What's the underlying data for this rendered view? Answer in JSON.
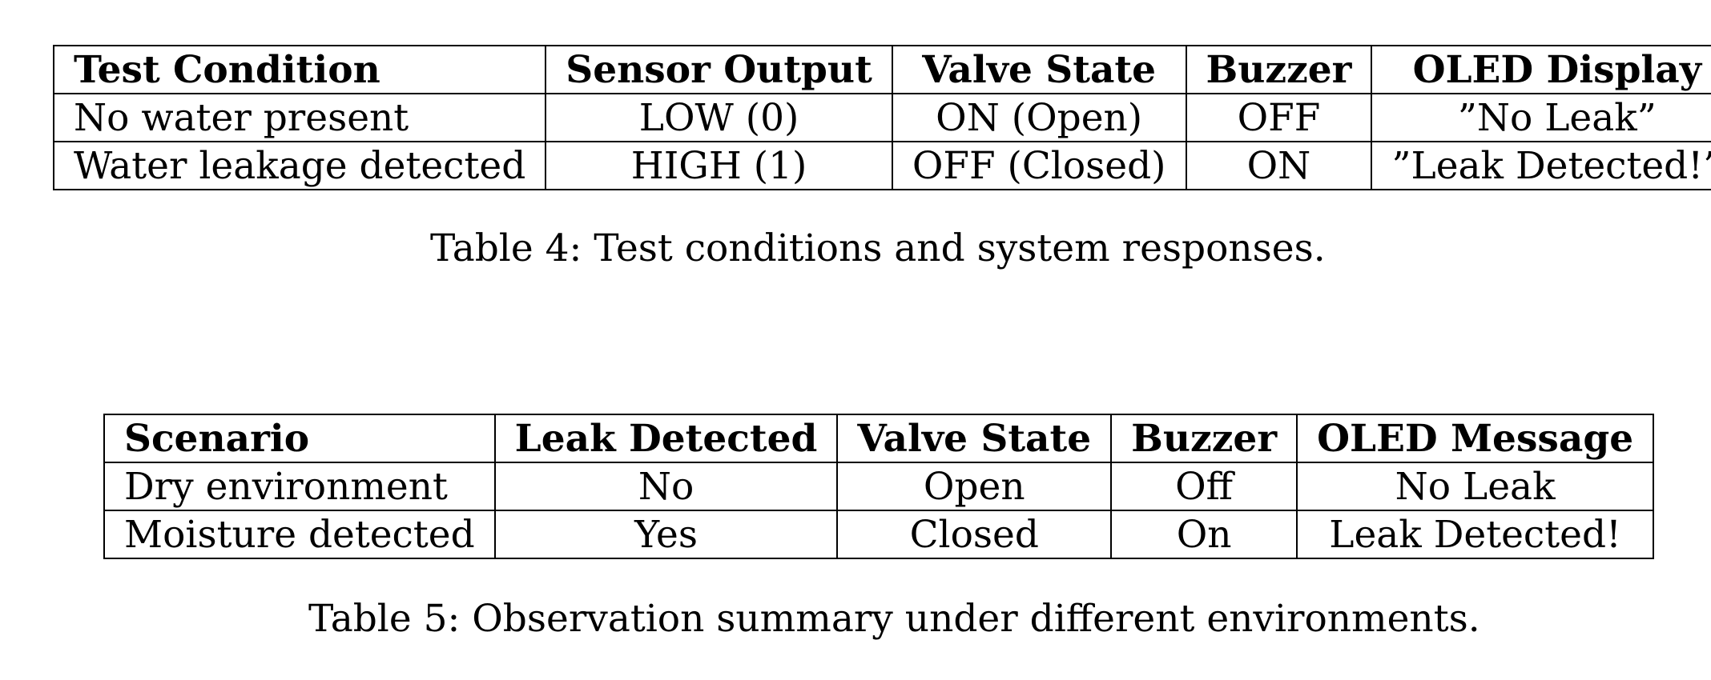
{
  "table4": {
    "headers": [
      "Test Condition",
      "Sensor Output",
      "Valve State",
      "Buzzer",
      "OLED Display"
    ],
    "rows": [
      [
        "No water present",
        "LOW (0)",
        "ON (Open)",
        "OFF",
        "”No Leak”"
      ],
      [
        "Water leakage detected",
        "HIGH (1)",
        "OFF (Closed)",
        "ON",
        "”Leak Detected!”"
      ]
    ],
    "caption": "Table 4: Test conditions and system responses."
  },
  "table5": {
    "headers": [
      "Scenario",
      "Leak Detected",
      "Valve State",
      "Buzzer",
      "OLED Message"
    ],
    "rows": [
      [
        "Dry environment",
        "No",
        "Open",
        "Off",
        "No Leak"
      ],
      [
        "Moisture detected",
        "Yes",
        "Closed",
        "On",
        "Leak Detected!"
      ]
    ],
    "caption": "Table 5: Observation summary under different environments."
  }
}
